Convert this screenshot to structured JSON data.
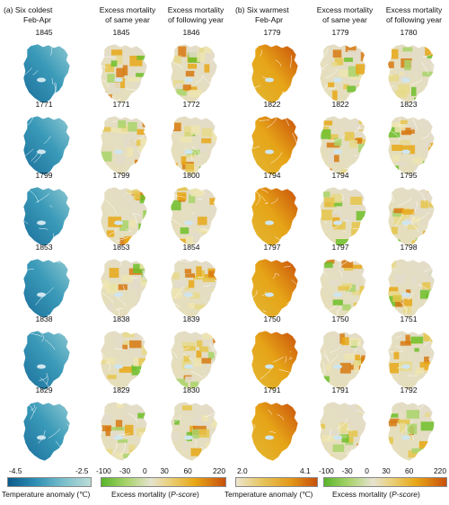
{
  "headers": {
    "a_title_line1": "(a)  Six coldest",
    "a_title_line2": "Feb-Apr",
    "a_col2_line1": "Excess mortality",
    "a_col2_line2": "of same year",
    "a_col3_line1": "Excess mortality",
    "a_col3_line2": "of following year",
    "b_title_line1": "(b)  Six warmest",
    "b_title_line2": "Feb-Apr",
    "b_col2_line1": "Excess mortality",
    "b_col2_line2": "of same year",
    "b_col3_line1": "Excess mortality",
    "b_col3_line2": "of following year"
  },
  "rows": [
    {
      "a": [
        "1845",
        "1845",
        "1846"
      ],
      "b": [
        "1779",
        "1779",
        "1780"
      ]
    },
    {
      "a": [
        "1771",
        "1771",
        "1772"
      ],
      "b": [
        "1822",
        "1822",
        "1823"
      ]
    },
    {
      "a": [
        "1799",
        "1799",
        "1800"
      ],
      "b": [
        "1794",
        "1794",
        "1795"
      ]
    },
    {
      "a": [
        "1853",
        "1853",
        "1854"
      ],
      "b": [
        "1797",
        "1797",
        "1798"
      ]
    },
    {
      "a": [
        "1838",
        "1838",
        "1839"
      ],
      "b": [
        "1750",
        "1750",
        "1751"
      ]
    },
    {
      "a": [
        "1829",
        "1829",
        "1830"
      ],
      "b": [
        "1791",
        "1791",
        "1792"
      ]
    }
  ],
  "legends": {
    "cold": {
      "min": "-4.5",
      "max": "-2.5",
      "title": "Temperature anomaly (℃)"
    },
    "mort1": {
      "ticks": [
        "-100",
        "-30",
        "0",
        "30",
        "60",
        "220"
      ],
      "title_main": "Excess mortality (",
      "title_ital": "P-score",
      "title_end": ")"
    },
    "warm": {
      "min": "2.0",
      "max": "4.1",
      "title": "Temperature anomaly (℃)"
    },
    "mort2": {
      "ticks": [
        "-100",
        "-30",
        "0",
        "30",
        "60",
        "220"
      ],
      "title_main": "Excess mortality (",
      "title_ital": "P-score",
      "title_end": ")"
    }
  },
  "colors": {
    "cold_dark": "#1b6f9c",
    "cold_light": "#8ec9d2",
    "neutral": "#e3dccb",
    "warm_dark": "#c9500b",
    "warm_mid": "#e6a417",
    "green": "#6fbf2a",
    "lake": "#cfe6ef"
  }
}
